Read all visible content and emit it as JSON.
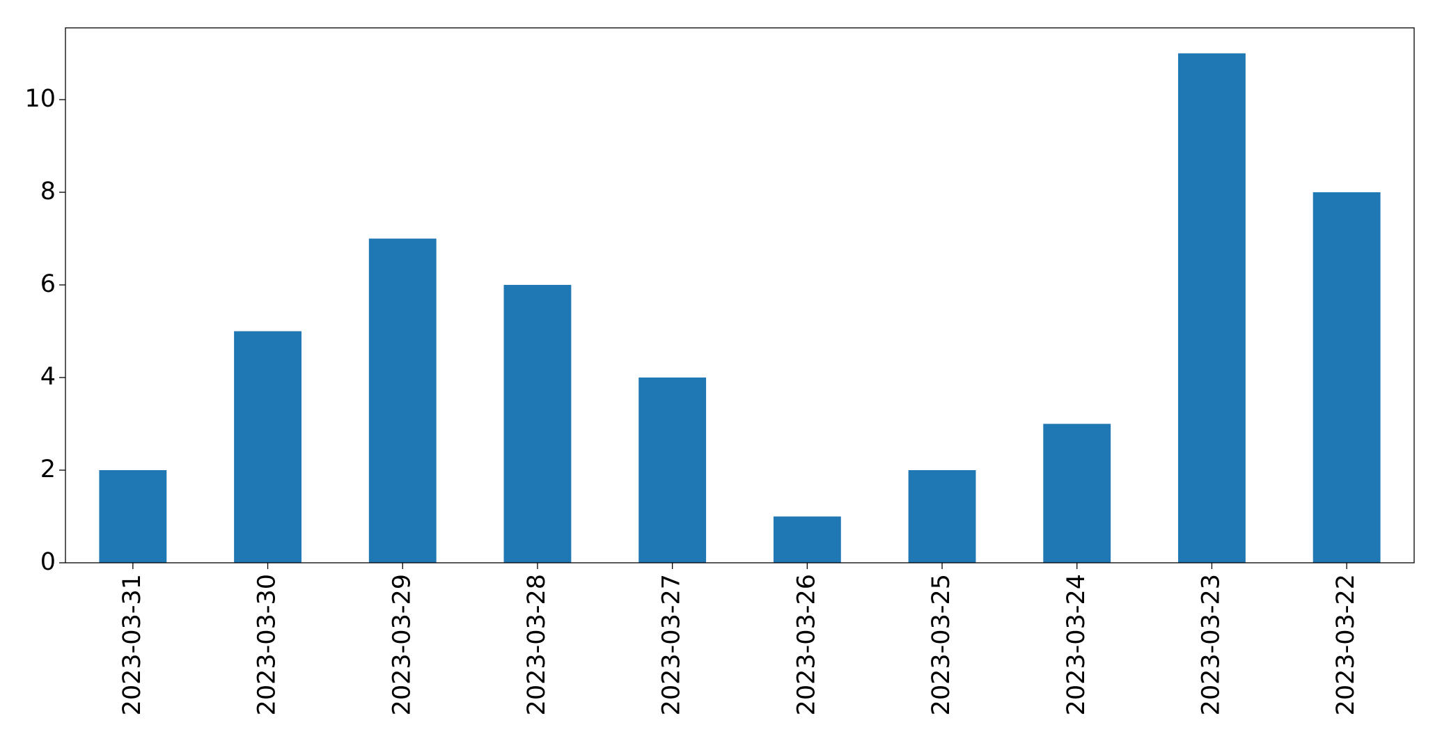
{
  "chart_data": {
    "type": "bar",
    "categories": [
      "2023-03-31",
      "2023-03-30",
      "2023-03-29",
      "2023-03-28",
      "2023-03-27",
      "2023-03-26",
      "2023-03-25",
      "2023-03-24",
      "2023-03-23",
      "2023-03-22"
    ],
    "values": [
      2,
      5,
      7,
      6,
      4,
      1,
      2,
      3,
      11,
      8
    ],
    "color": "#1f77b4",
    "ylim": [
      0,
      11.55
    ],
    "yticks": [
      0,
      2,
      4,
      6,
      8,
      10
    ],
    "grid": false
  }
}
